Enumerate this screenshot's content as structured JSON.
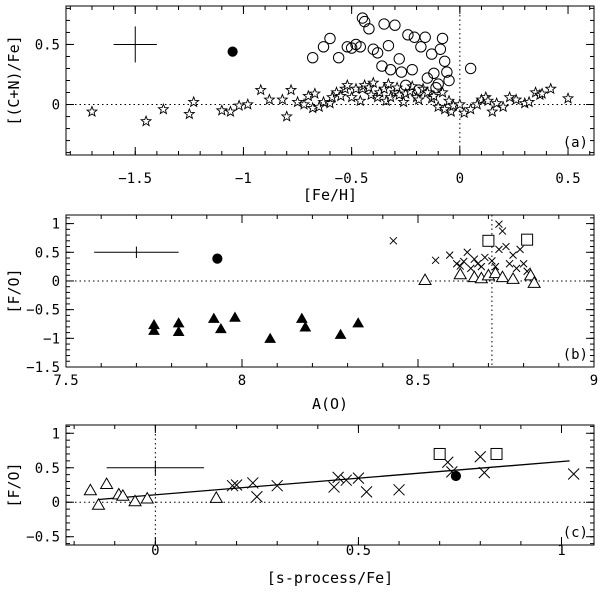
{
  "chart_data": [
    {
      "type": "scatter",
      "panel_label": "(a)",
      "xlabel": "[Fe/H]",
      "ylabel": "[(C+N)/Fe]",
      "xlim": [
        -1.82,
        0.62
      ],
      "ylim": [
        -0.42,
        0.82
      ],
      "xticks": [
        -1.5,
        -1,
        -0.5,
        0,
        0.5
      ],
      "xtick_labels": [
        "−1.5",
        "−1",
        "−0.5",
        "0",
        "0.5"
      ],
      "yticks": [
        0,
        0.5
      ],
      "ytick_labels": [
        "0",
        "0.5"
      ],
      "ref_hline": 0,
      "ref_vline": 0,
      "error_bar": {
        "x": -1.5,
        "y": 0.5,
        "xerr": 0.1,
        "yerr": 0.15
      },
      "series": [
        {
          "name": "stars",
          "marker": "star-open",
          "points": [
            [
              -1.7,
              -0.06
            ],
            [
              -1.45,
              -0.14
            ],
            [
              -1.37,
              -0.04
            ],
            [
              -1.25,
              -0.08
            ],
            [
              -1.23,
              0.02
            ],
            [
              -1.1,
              -0.05
            ],
            [
              -1.06,
              -0.06
            ],
            [
              -1.02,
              -0.01
            ],
            [
              -0.98,
              0.0
            ],
            [
              -0.92,
              0.12
            ],
            [
              -0.88,
              0.04
            ],
            [
              -0.82,
              0.04
            ],
            [
              -0.8,
              -0.1
            ],
            [
              -0.78,
              0.12
            ],
            [
              -0.75,
              0.02
            ],
            [
              -0.72,
              0.0
            ],
            [
              -0.7,
              0.07
            ],
            [
              -0.68,
              -0.03
            ],
            [
              -0.67,
              0.09
            ],
            [
              -0.65,
              -0.02
            ],
            [
              -0.63,
              0.02
            ],
            [
              -0.6,
              0.01
            ],
            [
              -0.59,
              0.06
            ],
            [
              -0.57,
              0.1
            ],
            [
              -0.55,
              0.07
            ],
            [
              -0.53,
              0.13
            ],
            [
              -0.52,
              0.16
            ],
            [
              -0.5,
              0.06
            ],
            [
              -0.48,
              0.13
            ],
            [
              -0.46,
              0.03
            ],
            [
              -0.45,
              0.13
            ],
            [
              -0.44,
              0.16
            ],
            [
              -0.42,
              0.14
            ],
            [
              -0.41,
              0.08
            ],
            [
              -0.4,
              0.18
            ],
            [
              -0.38,
              0.06
            ],
            [
              -0.37,
              0.1
            ],
            [
              -0.35,
              0.13
            ],
            [
              -0.34,
              0.03
            ],
            [
              -0.33,
              0.17
            ],
            [
              -0.32,
              0.06
            ],
            [
              -0.3,
              0.1
            ],
            [
              -0.29,
              0.14
            ],
            [
              -0.28,
              0.08
            ],
            [
              -0.26,
              0.02
            ],
            [
              -0.25,
              0.09
            ],
            [
              -0.23,
              0.11
            ],
            [
              -0.22,
              0.15
            ],
            [
              -0.2,
              0.06
            ],
            [
              -0.19,
              0.04
            ],
            [
              -0.17,
              0.13
            ],
            [
              -0.15,
              0.1
            ],
            [
              -0.13,
              0.05
            ],
            [
              -0.12,
              0.07
            ],
            [
              -0.1,
              -0.02
            ],
            [
              -0.08,
              0.1
            ],
            [
              -0.07,
              -0.04
            ],
            [
              -0.05,
              0.03
            ],
            [
              -0.04,
              -0.06
            ],
            [
              -0.03,
              -0.01
            ],
            [
              0.0,
              0.0
            ],
            [
              0.02,
              -0.07
            ],
            [
              0.05,
              -0.04
            ],
            [
              0.08,
              0.0
            ],
            [
              0.1,
              0.04
            ],
            [
              0.12,
              0.06
            ],
            [
              0.13,
              0.03
            ],
            [
              0.15,
              -0.06
            ],
            [
              0.17,
              0.01
            ],
            [
              0.2,
              -0.02
            ],
            [
              0.23,
              0.06
            ],
            [
              0.26,
              0.04
            ],
            [
              0.3,
              0.01
            ],
            [
              0.32,
              0.02
            ],
            [
              0.35,
              0.1
            ],
            [
              0.37,
              0.08
            ],
            [
              0.38,
              0.09
            ],
            [
              0.42,
              0.13
            ],
            [
              0.5,
              0.05
            ]
          ]
        },
        {
          "name": "open circles",
          "marker": "circle-open",
          "points": [
            [
              -0.68,
              0.39
            ],
            [
              -0.63,
              0.48
            ],
            [
              -0.6,
              0.55
            ],
            [
              -0.56,
              0.39
            ],
            [
              -0.52,
              0.48
            ],
            [
              -0.5,
              0.47
            ],
            [
              -0.48,
              0.5
            ],
            [
              -0.46,
              0.48
            ],
            [
              -0.45,
              0.72
            ],
            [
              -0.44,
              0.69
            ],
            [
              -0.42,
              0.63
            ],
            [
              -0.4,
              0.46
            ],
            [
              -0.38,
              0.43
            ],
            [
              -0.36,
              0.32
            ],
            [
              -0.35,
              0.67
            ],
            [
              -0.33,
              0.49
            ],
            [
              -0.32,
              0.29
            ],
            [
              -0.3,
              0.66
            ],
            [
              -0.28,
              0.38
            ],
            [
              -0.27,
              0.27
            ],
            [
              -0.25,
              0.16
            ],
            [
              -0.24,
              0.58
            ],
            [
              -0.22,
              0.29
            ],
            [
              -0.21,
              0.56
            ],
            [
              -0.19,
              0.12
            ],
            [
              -0.18,
              0.48
            ],
            [
              -0.16,
              0.56
            ],
            [
              -0.15,
              0.22
            ],
            [
              -0.13,
              0.42
            ],
            [
              -0.12,
              0.26
            ],
            [
              -0.11,
              0.14
            ],
            [
              -0.1,
              0.17
            ],
            [
              -0.09,
              0.46
            ],
            [
              -0.08,
              0.55
            ],
            [
              -0.07,
              0.36
            ],
            [
              -0.06,
              0.27
            ],
            [
              -0.05,
              0.2
            ],
            [
              0.05,
              0.3
            ]
          ]
        },
        {
          "name": "filled circle",
          "marker": "circle-filled",
          "points": [
            [
              -1.05,
              0.44
            ]
          ]
        }
      ]
    },
    {
      "type": "scatter",
      "panel_label": "(b)",
      "xlabel": "A(O)",
      "ylabel": "[F/O]",
      "xlim": [
        7.5,
        9.0
      ],
      "ylim": [
        -1.5,
        1.15
      ],
      "xticks": [
        7.5,
        8,
        8.5,
        9
      ],
      "xtick_labels": [
        "7.5",
        "8",
        "8.5",
        "9"
      ],
      "yticks": [
        -1.5,
        -1,
        -0.5,
        0,
        0.5,
        1
      ],
      "ytick_labels": [
        "−1.5",
        "−1",
        "−0.5",
        "0",
        "0.5",
        "1"
      ],
      "ref_hline": 0,
      "ref_vline": 8.71,
      "error_bar": {
        "x": 7.7,
        "y": 0.5,
        "xerr": 0.12,
        "yerr": 0.1
      },
      "series": [
        {
          "name": "crosses",
          "marker": "cross",
          "points": [
            [
              8.43,
              0.7
            ],
            [
              8.55,
              0.36
            ],
            [
              8.59,
              0.45
            ],
            [
              8.61,
              0.3
            ],
            [
              8.62,
              0.26
            ],
            [
              8.63,
              0.34
            ],
            [
              8.64,
              0.5
            ],
            [
              8.65,
              0.22
            ],
            [
              8.66,
              0.38
            ],
            [
              8.67,
              0.3
            ],
            [
              8.68,
              0.25
            ],
            [
              8.69,
              0.41
            ],
            [
              8.71,
              0.35
            ],
            [
              8.72,
              0.25
            ],
            [
              8.73,
              0.99
            ],
            [
              8.73,
              0.55
            ],
            [
              8.74,
              0.87
            ],
            [
              8.75,
              0.6
            ],
            [
              8.76,
              0.3
            ],
            [
              8.77,
              0.45
            ],
            [
              8.78,
              0.22
            ],
            [
              8.79,
              0.55
            ],
            [
              8.8,
              0.3
            ],
            [
              8.81,
              0.17
            ]
          ]
        },
        {
          "name": "open squares",
          "marker": "square-open",
          "points": [
            [
              8.7,
              0.7
            ],
            [
              8.81,
              0.72
            ]
          ]
        },
        {
          "name": "open triangles",
          "marker": "triangle-open",
          "points": [
            [
              8.52,
              0.0
            ],
            [
              8.62,
              0.1
            ],
            [
              8.66,
              0.05
            ],
            [
              8.68,
              0.03
            ],
            [
              8.7,
              0.08
            ],
            [
              8.72,
              0.12
            ],
            [
              8.74,
              0.05
            ],
            [
              8.77,
              0.02
            ],
            [
              8.82,
              0.08
            ],
            [
              8.83,
              -0.05
            ]
          ]
        },
        {
          "name": "filled triangles",
          "marker": "triangle-filled",
          "points": [
            [
              7.75,
              -0.78
            ],
            [
              7.75,
              -0.88
            ],
            [
              7.82,
              -0.75
            ],
            [
              7.82,
              -0.9
            ],
            [
              7.92,
              -0.67
            ],
            [
              7.94,
              -0.85
            ],
            [
              7.98,
              -0.65
            ],
            [
              8.08,
              -1.02
            ],
            [
              8.17,
              -0.67
            ],
            [
              8.18,
              -0.82
            ],
            [
              8.28,
              -0.95
            ],
            [
              8.33,
              -0.75
            ]
          ]
        },
        {
          "name": "filled circle",
          "marker": "circle-filled",
          "points": [
            [
              7.93,
              0.39
            ]
          ]
        }
      ]
    },
    {
      "type": "scatter",
      "panel_label": "(c)",
      "xlabel": "[s-process/Fe]",
      "ylabel": "[F/O]",
      "xlim": [
        -0.22,
        1.08
      ],
      "ylim": [
        -0.62,
        1.12
      ],
      "xticks": [
        0,
        0.5,
        1
      ],
      "xtick_labels": [
        "0",
        "0.5",
        "1"
      ],
      "yticks": [
        -0.5,
        0,
        0.5,
        1
      ],
      "ytick_labels": [
        "−0.5",
        "0",
        "0.5",
        "1"
      ],
      "ref_hline": 0,
      "ref_vline": 0,
      "error_bar": {
        "x": 0.0,
        "y": 0.5,
        "xerr": 0.12,
        "yerr": 0.1
      },
      "fit_line": {
        "x1": -0.14,
        "y1": 0.04,
        "x2": 1.02,
        "y2": 0.6
      },
      "series": [
        {
          "name": "crosses",
          "marker": "cross",
          "points": [
            [
              0.19,
              0.24
            ],
            [
              0.2,
              0.25
            ],
            [
              0.24,
              0.28
            ],
            [
              0.25,
              0.08
            ],
            [
              0.3,
              0.24
            ],
            [
              0.44,
              0.22
            ],
            [
              0.45,
              0.36
            ],
            [
              0.47,
              0.32
            ],
            [
              0.5,
              0.35
            ],
            [
              0.52,
              0.15
            ],
            [
              0.6,
              0.18
            ],
            [
              0.72,
              0.58
            ],
            [
              0.73,
              0.44
            ],
            [
              0.8,
              0.66
            ],
            [
              0.81,
              0.43
            ],
            [
              1.03,
              0.41
            ]
          ]
        },
        {
          "name": "open squares",
          "marker": "square-open",
          "points": [
            [
              0.7,
              0.7
            ],
            [
              0.84,
              0.7
            ]
          ]
        },
        {
          "name": "open triangles",
          "marker": "triangle-open",
          "points": [
            [
              -0.16,
              0.16
            ],
            [
              -0.14,
              -0.05
            ],
            [
              -0.12,
              0.25
            ],
            [
              -0.09,
              0.1
            ],
            [
              -0.08,
              0.08
            ],
            [
              -0.05,
              0.0
            ],
            [
              -0.02,
              0.04
            ],
            [
              0.15,
              0.05
            ]
          ]
        },
        {
          "name": "filled circle",
          "marker": "circle-filled",
          "points": [
            [
              0.74,
              0.38
            ]
          ]
        }
      ]
    }
  ]
}
